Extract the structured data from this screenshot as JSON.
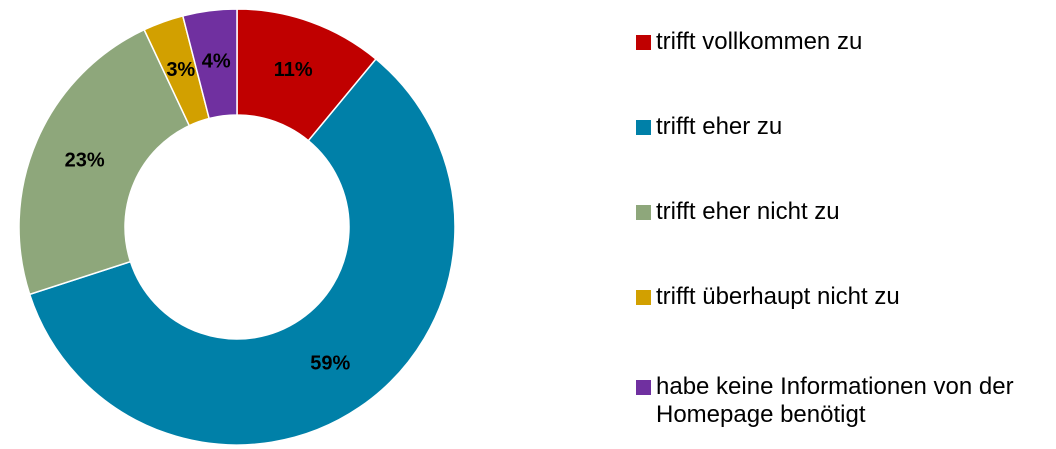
{
  "chart_data": {
    "type": "donut",
    "categories": [
      "trifft vollkommen zu",
      "trifft eher zu",
      "trifft eher nicht zu",
      "trifft überhaupt nicht zu",
      "habe keine Informationen von der Homepage benötigt"
    ],
    "values": [
      11,
      59,
      23,
      3,
      4
    ],
    "value_labels": [
      "11%",
      "59%",
      "23%",
      "3%",
      "4%"
    ],
    "colors": [
      "#c00000",
      "#0080a8",
      "#8ea77b",
      "#d2a000",
      "#7030a0"
    ],
    "legend": "right"
  }
}
